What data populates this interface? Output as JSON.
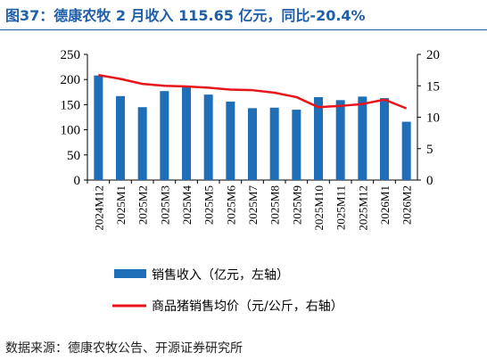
{
  "title": "图37：德康农牧 2 月收入 115.65 亿元，同比-20.4%",
  "source": "数据来源：德康农牧公告、开源证券研究所",
  "chart_data": {
    "type": "bar",
    "categories": [
      "2024M12",
      "2025M1",
      "2025M2",
      "2025M3",
      "2025M4",
      "2025M5",
      "2025M6",
      "2025M7",
      "2025M8",
      "2025M9",
      "2025M10",
      "2025M11",
      "2025M12",
      "2026M1",
      "2026M2"
    ],
    "left_axis": {
      "ylim": [
        0,
        250
      ],
      "ticks": [
        "0",
        "50",
        "100",
        "150",
        "200",
        "250"
      ]
    },
    "right_axis": {
      "ylim": [
        0,
        20
      ],
      "ticks": [
        "0",
        "5",
        "10",
        "15",
        "20"
      ]
    },
    "series": [
      {
        "name": "销售收入（亿元，左轴）",
        "type": "bar",
        "axis": "left",
        "color": "#1f6fb8",
        "values": [
          208,
          167,
          145,
          177,
          186,
          170,
          156,
          143,
          144,
          140,
          165,
          159,
          166,
          163,
          116
        ]
      },
      {
        "name": "商品猪销售均价（元/公斤，右轴）",
        "type": "line",
        "axis": "right",
        "color": "#e8141c",
        "values": [
          16.7,
          16.1,
          15.3,
          15.0,
          14.9,
          14.7,
          14.4,
          14.3,
          13.9,
          13.2,
          11.6,
          11.8,
          12.1,
          12.8,
          11.4
        ]
      }
    ],
    "legend_position": "bottom",
    "grid": false
  }
}
